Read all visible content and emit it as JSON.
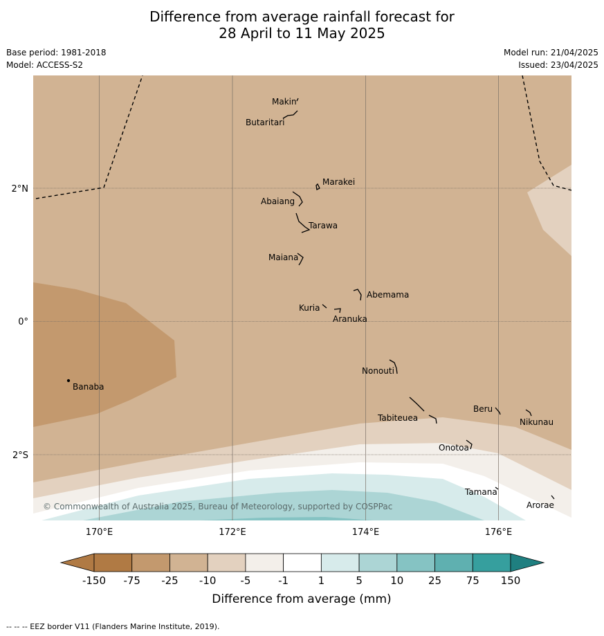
{
  "title_line1": "Difference from average rainfall forecast for",
  "title_line2": "28 April to 11 May 2025",
  "base_period": "Base period: 1981-2018",
  "model": "Model: ACCESS-S2",
  "model_run": "Model run: 21/04/2025",
  "issued": "Issued: 23/04/2025",
  "copyright": "© Commonwealth of Australia 2025, Bureau of Meteorology, supported by COSPPac",
  "footnote": "--  --  -- EEZ border V11 (Flanders Marine Institute, 2019).",
  "lon_labels": [
    "170°E",
    "172°E",
    "174°E",
    "176°E"
  ],
  "lat_labels": [
    "2°N",
    "0°",
    "2°S"
  ],
  "places": [
    "Makin",
    "Butaritari",
    "Marakei",
    "Abaiang",
    "Tarawa",
    "Maiana",
    "Abemama",
    "Kuria",
    "Aranuka",
    "Banaba",
    "Nonouti",
    "Tabiteuea",
    "Beru",
    "Nikunau",
    "Onotoa",
    "Tamana",
    "Arorae"
  ],
  "colorbar": {
    "title": "Difference from average (mm)",
    "ticks": [
      "-150",
      "-75",
      "-25",
      "-10",
      "-5",
      "-1",
      "1",
      "5",
      "10",
      "25",
      "75",
      "150"
    ],
    "colors": [
      "#b07a44",
      "#c3996e",
      "#d1b393",
      "#e3d1bf",
      "#f3efea",
      "#ffffff",
      "#d7ebeb",
      "#acd5d5",
      "#85c3c3",
      "#5fb0b0",
      "#369f9e",
      "#1f7f80"
    ]
  }
}
